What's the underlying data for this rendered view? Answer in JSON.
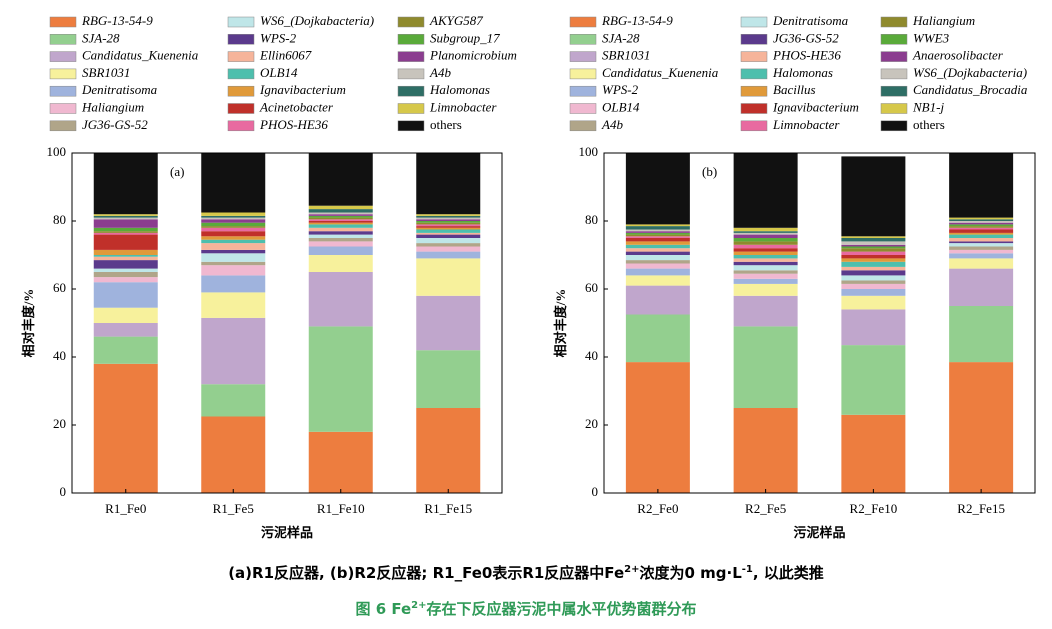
{
  "chart_data": [
    {
      "type": "bar",
      "stacked": true,
      "panel_label": "(a)",
      "ylabel": "相对丰度/%",
      "xlabel": "污泥样品",
      "categories": [
        "R1_Fe0",
        "R1_Fe5",
        "R1_Fe10",
        "R1_Fe15"
      ],
      "ylim": [
        0,
        100
      ],
      "yticks": [
        0,
        20,
        40,
        60,
        80,
        100
      ],
      "series": [
        {
          "name": "RBG-13-54-9",
          "color": "#ed7d3f",
          "values": [
            38,
            22.5,
            18,
            25
          ]
        },
        {
          "name": "SJA-28",
          "color": "#93cf8f",
          "values": [
            8,
            9.5,
            31,
            17
          ]
        },
        {
          "name": "Candidatus_Kuenenia",
          "color": "#c0a6cc",
          "values": [
            4,
            19.5,
            16,
            16
          ]
        },
        {
          "name": "SBR1031",
          "color": "#f7f19c",
          "values": [
            4.5,
            7.5,
            5,
            11
          ]
        },
        {
          "name": "Denitratisoma",
          "color": "#9fb3dd",
          "values": [
            7.5,
            5,
            2.5,
            2
          ]
        },
        {
          "name": "Haliangium",
          "color": "#f0b8d0",
          "values": [
            1.5,
            3,
            1.5,
            1.5
          ]
        },
        {
          "name": "JG36-GS-52",
          "color": "#b0a589",
          "values": [
            1.5,
            1,
            1,
            1
          ]
        },
        {
          "name": "WS6_(Dojkabacteria)",
          "color": "#bfe6e8",
          "values": [
            1,
            2.5,
            1,
            1.5
          ]
        },
        {
          "name": "WPS-2",
          "color": "#5b3a8c",
          "values": [
            2.5,
            1,
            1,
            1
          ]
        },
        {
          "name": "Ellin6067",
          "color": "#f6b49a",
          "values": [
            1,
            2,
            1,
            0.5
          ]
        },
        {
          "name": "OLB14",
          "color": "#4dbfad",
          "values": [
            0.5,
            1,
            1,
            1
          ]
        },
        {
          "name": "Ignavibacterium",
          "color": "#e09a3a",
          "values": [
            1.5,
            1,
            0.5,
            0.5
          ]
        },
        {
          "name": "Acinetobacter",
          "color": "#c0302a",
          "values": [
            4.5,
            1.5,
            0.5,
            0.5
          ]
        },
        {
          "name": "PHOS-HE36",
          "color": "#e86aa0",
          "values": [
            0.5,
            1,
            0.5,
            0.5
          ]
        },
        {
          "name": "AKYG587",
          "color": "#8f8a2d",
          "values": [
            0.5,
            0.5,
            0.5,
            0.5
          ]
        },
        {
          "name": "Subgroup_17",
          "color": "#5aaa3a",
          "values": [
            1,
            1,
            0.5,
            0.5
          ]
        },
        {
          "name": "Planomicrobium",
          "color": "#8b3d8f",
          "values": [
            2.5,
            1,
            0.5,
            0.5
          ]
        },
        {
          "name": "A4b",
          "color": "#c8c4bc",
          "values": [
            0.5,
            0.5,
            0.5,
            0.5
          ]
        },
        {
          "name": "Halomonas",
          "color": "#2e6e65",
          "values": [
            0.5,
            0.5,
            1,
            0.5
          ]
        },
        {
          "name": "Limnobacter",
          "color": "#d6c84a",
          "values": [
            0.5,
            1,
            1,
            0.5
          ]
        },
        {
          "name": "others",
          "color": "#111111",
          "values": [
            18,
            17.5,
            15.5,
            18
          ]
        }
      ]
    },
    {
      "type": "bar",
      "stacked": true,
      "panel_label": "(b)",
      "ylabel": "相对丰度/%",
      "xlabel": "污泥样品",
      "categories": [
        "R2_Fe0",
        "R2_Fe5",
        "R2_Fe10",
        "R2_Fe15"
      ],
      "ylim": [
        0,
        100
      ],
      "yticks": [
        0,
        20,
        40,
        60,
        80,
        100
      ],
      "series": [
        {
          "name": "RBG-13-54-9",
          "color": "#ed7d3f",
          "values": [
            38.5,
            25,
            23,
            38.5
          ]
        },
        {
          "name": "SJA-28",
          "color": "#93cf8f",
          "values": [
            14,
            24,
            20.5,
            16.5
          ]
        },
        {
          "name": "SBR1031",
          "color": "#c0a6cc",
          "values": [
            8.5,
            9,
            10.5,
            11
          ]
        },
        {
          "name": "Candidatus_Kuenenia",
          "color": "#f7f19c",
          "values": [
            3,
            3.5,
            4,
            3
          ]
        },
        {
          "name": "WPS-2",
          "color": "#9fb3dd",
          "values": [
            2,
            1.5,
            2,
            1.5
          ]
        },
        {
          "name": "OLB14",
          "color": "#f0b8d0",
          "values": [
            1.5,
            1.5,
            1.5,
            1
          ]
        },
        {
          "name": "A4b",
          "color": "#b0a589",
          "values": [
            1,
            1,
            1,
            1
          ]
        },
        {
          "name": "Denitratisoma",
          "color": "#bfe6e8",
          "values": [
            1.5,
            1.5,
            1.5,
            1
          ]
        },
        {
          "name": "JG36-GS-52",
          "color": "#5b3a8c",
          "values": [
            1,
            1,
            1.5,
            0.5
          ]
        },
        {
          "name": "PHOS-HE36",
          "color": "#f6b49a",
          "values": [
            1,
            1,
            1,
            1
          ]
        },
        {
          "name": "Halomonas",
          "color": "#4dbfad",
          "values": [
            1,
            1,
            1.5,
            1
          ]
        },
        {
          "name": "Bacillus",
          "color": "#e09a3a",
          "values": [
            1,
            1,
            1,
            0.5
          ]
        },
        {
          "name": "Ignavibacterium",
          "color": "#c0302a",
          "values": [
            1,
            1,
            1,
            1
          ]
        },
        {
          "name": "Limnobacter",
          "color": "#e86aa0",
          "values": [
            0.5,
            1,
            1,
            0.5
          ]
        },
        {
          "name": "Haliangium",
          "color": "#8f8a2d",
          "values": [
            0.5,
            1,
            1,
            0.5
          ]
        },
        {
          "name": "WWE3",
          "color": "#5aaa3a",
          "values": [
            0.5,
            1,
            0.5,
            0.5
          ]
        },
        {
          "name": "Anaerosolibacter",
          "color": "#8b3d8f",
          "values": [
            0.5,
            1,
            0.5,
            0.5
          ]
        },
        {
          "name": "WS6_(Dojkabacteria)",
          "color": "#c8c4bc",
          "values": [
            0.5,
            0.5,
            1,
            0.5
          ]
        },
        {
          "name": "Candidatus_Brocadia",
          "color": "#2e6e65",
          "values": [
            1,
            0.5,
            1,
            0.5
          ]
        },
        {
          "name": "NB1-j",
          "color": "#d6c84a",
          "values": [
            0.5,
            1,
            0.5,
            0.5
          ]
        },
        {
          "name": "others",
          "color": "#111111",
          "values": [
            21,
            22,
            23.5,
            19
          ]
        }
      ]
    }
  ],
  "caption": {
    "line1": [
      "(a)R1反应器, (b)R2反应器; R1_Fe0表示R1反应器中Fe",
      "2+",
      "浓度为0 mg·L",
      "-1",
      ", 以此类推"
    ],
    "line2": [
      "图 6 Fe",
      "2+",
      "存在下反应器污泥中属水平优势菌群分布"
    ]
  }
}
